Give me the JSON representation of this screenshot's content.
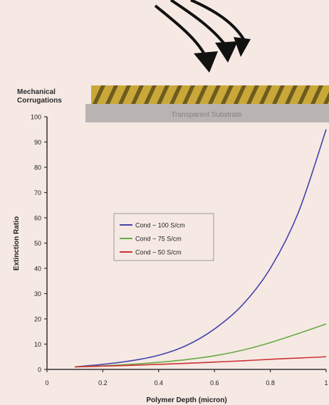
{
  "diagram": {
    "left_label_line1": "Mechanical",
    "left_label_line2": "Corrugations",
    "substrate_label": "Transparent Substrate"
  },
  "chart_data": {
    "type": "line",
    "title": "",
    "xlabel": "Polymer Depth (micron)",
    "ylabel": "Extinction Ratio",
    "xlim": [
      0,
      1
    ],
    "ylim": [
      0,
      100
    ],
    "xticks": [
      0,
      0.2,
      0.4,
      0.6,
      0.8,
      1
    ],
    "xtick_labels": [
      "0",
      "0.2",
      "0.4",
      "0.6",
      "0.8",
      "1"
    ],
    "yticks": [
      0,
      10,
      20,
      30,
      40,
      50,
      60,
      70,
      80,
      90,
      100
    ],
    "ytick_labels": [
      "0",
      "10",
      "20",
      "30",
      "40",
      "50",
      "60",
      "70",
      "80",
      "90",
      "100"
    ],
    "grid": false,
    "legend_position": "center-left",
    "x": [
      0.1,
      0.2,
      0.3,
      0.4,
      0.5,
      0.6,
      0.7,
      0.8,
      0.9,
      1.0
    ],
    "series": [
      {
        "name": "Cond ~ 100 S/cm",
        "color": "#4444aa",
        "values": [
          1.0,
          2.0,
          3.4,
          5.6,
          9.5,
          16,
          25.5,
          40,
          62,
          95
        ]
      },
      {
        "name": "Cond ~ 75 S/cm",
        "color": "#66aa44",
        "values": [
          1.0,
          1.4,
          2.0,
          2.8,
          3.9,
          5.4,
          7.6,
          10.6,
          14.2,
          18
        ]
      },
      {
        "name": "Cond ~ 50 S/cm",
        "color": "#cc3333",
        "values": [
          1.0,
          1.3,
          1.6,
          2.0,
          2.4,
          2.9,
          3.4,
          4.0,
          4.5,
          5.0
        ]
      }
    ]
  }
}
